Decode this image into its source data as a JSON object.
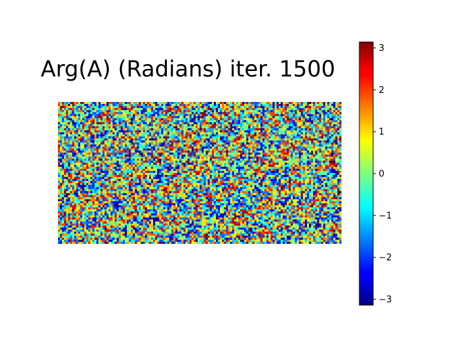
{
  "chart_data": {
    "type": "heatmap",
    "title": "Arg(A) (Radians) iter. 1500",
    "xlabel": "",
    "ylabel": "",
    "axes_visible": false,
    "grid_rows": 70,
    "grid_cols": 140,
    "value_range": [
      -3.14159,
      3.14159
    ],
    "colormap": "jet",
    "description_pattern": "random phase field with faint diagonal wave fronts",
    "colorbar": {
      "ticks": [
        3,
        2,
        1,
        0,
        -1,
        -2,
        -3
      ],
      "tick_labels": [
        "3",
        "2",
        "1",
        "0",
        "−1",
        "−2",
        "−3"
      ],
      "range": [
        -3.14159,
        3.14159
      ],
      "placement": "right"
    },
    "seed": 1500
  }
}
